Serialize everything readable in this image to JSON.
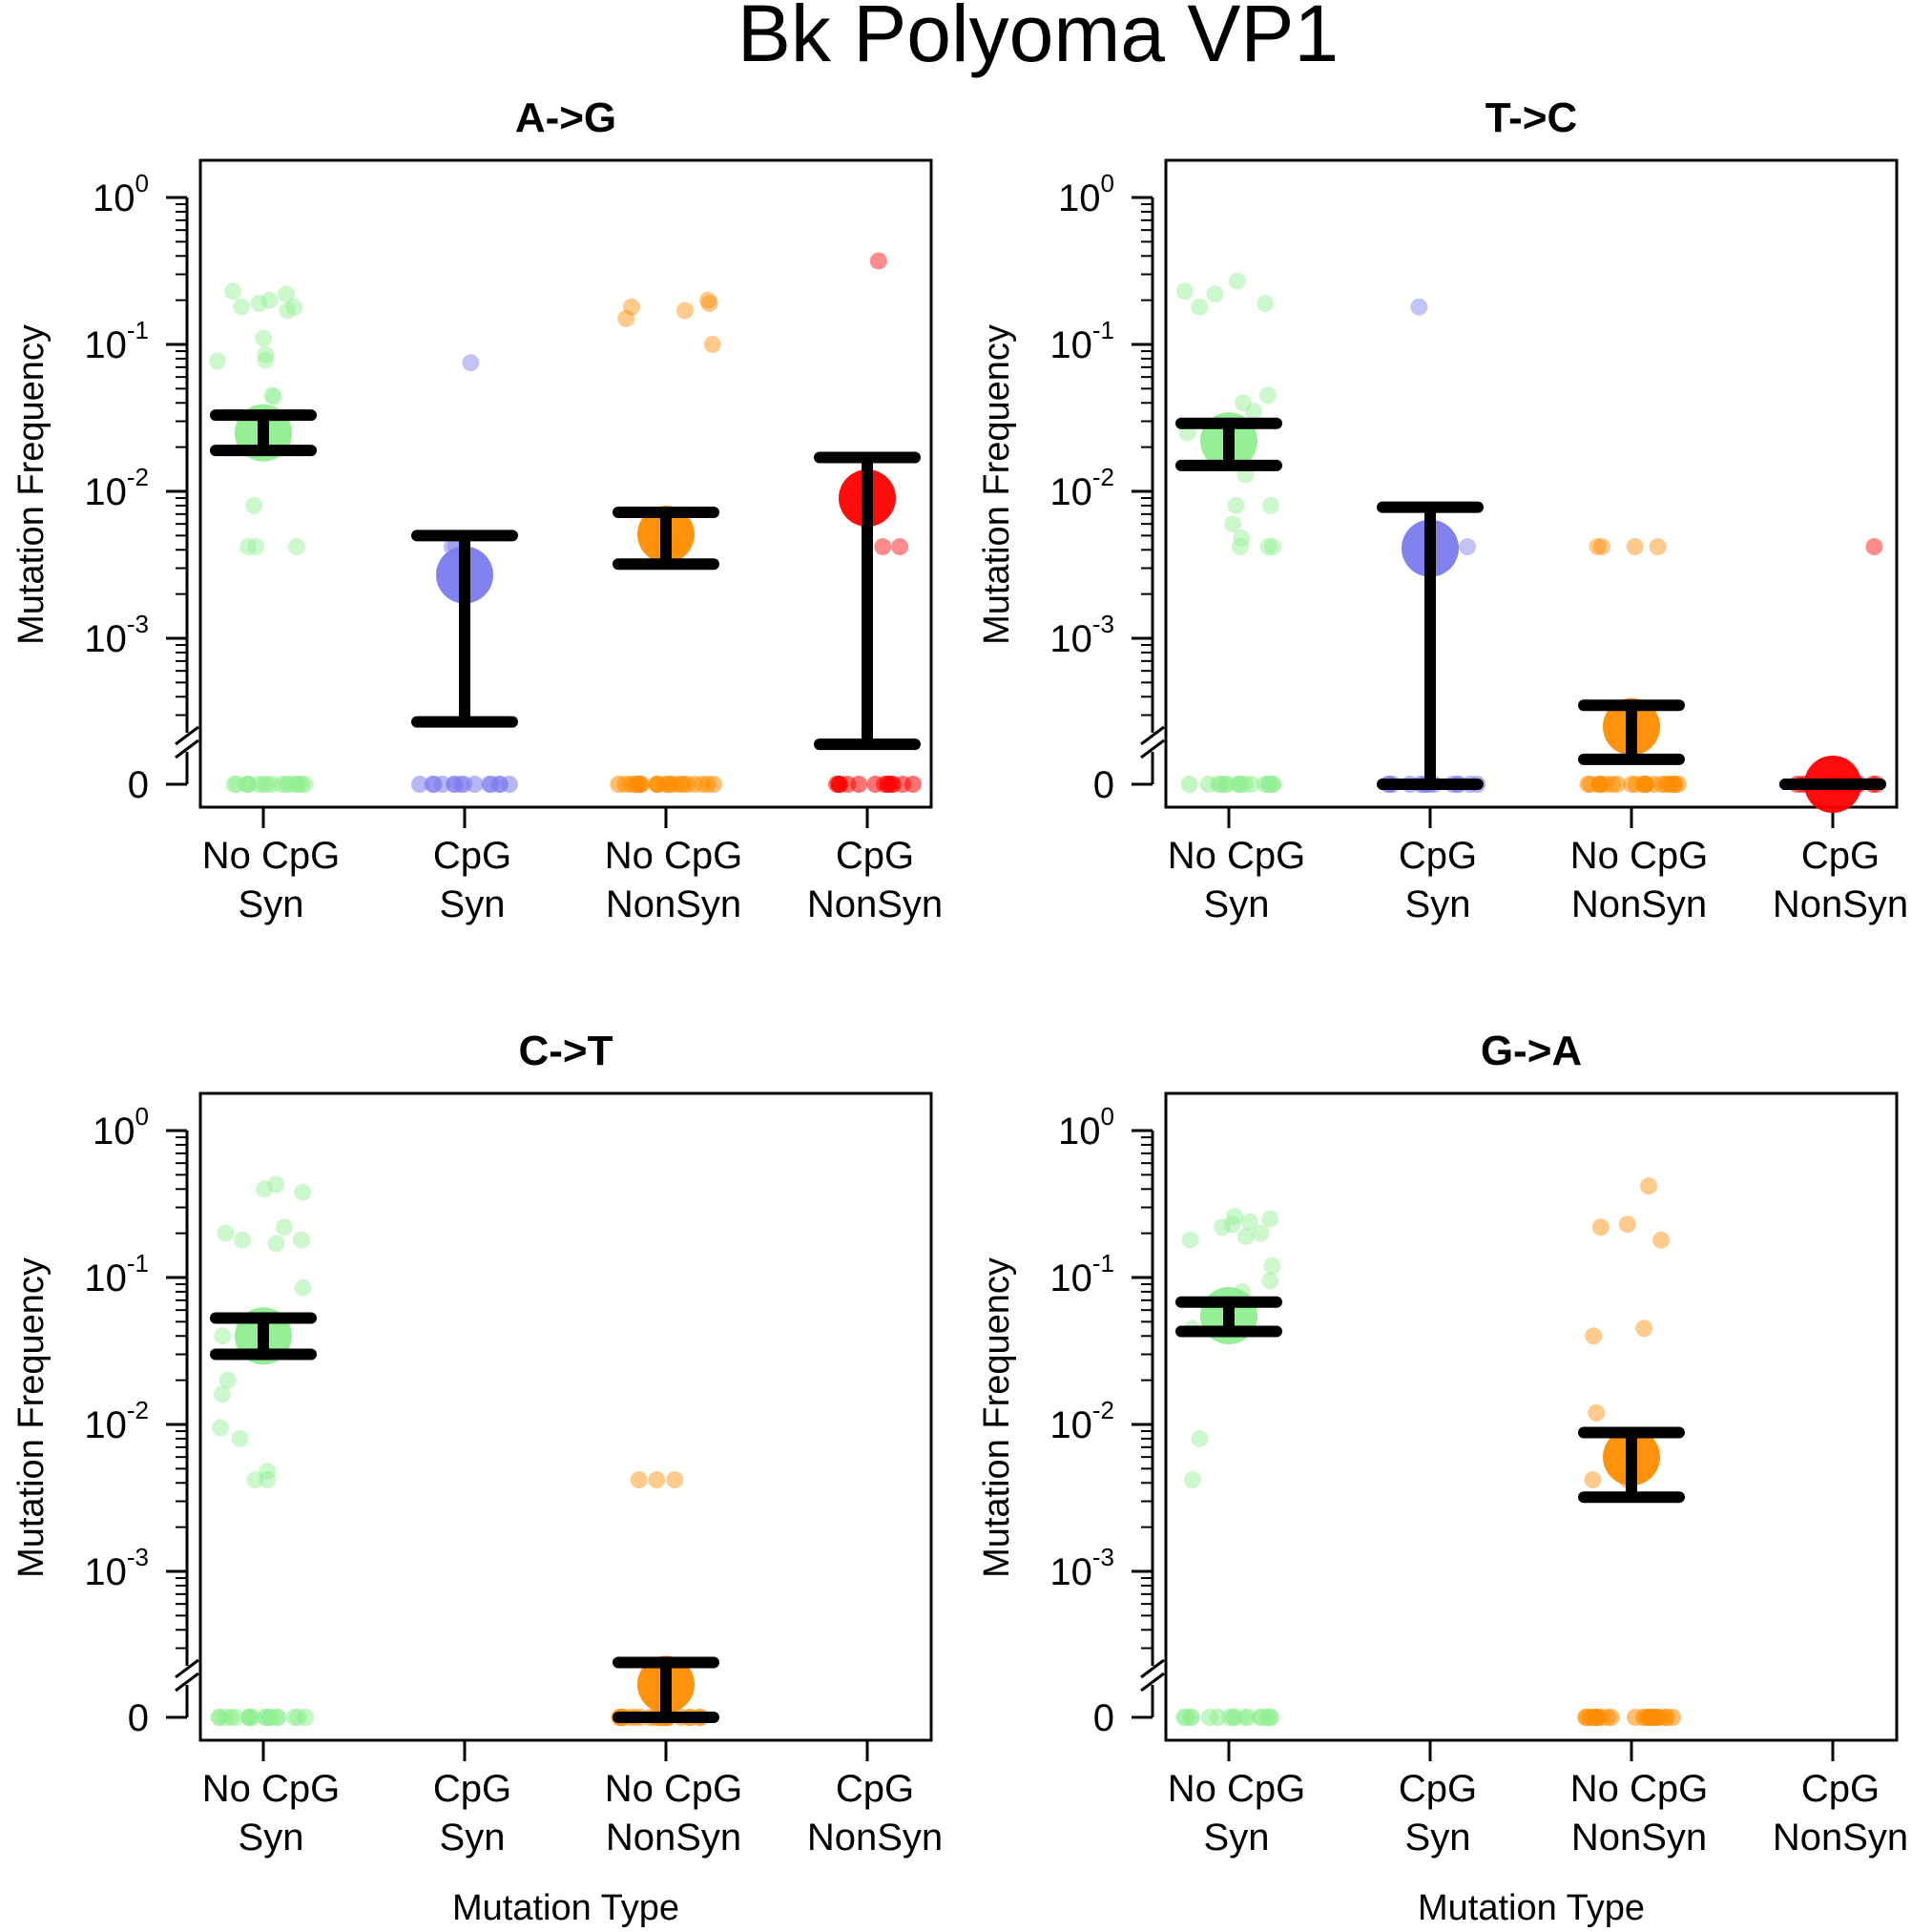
{
  "title": "Bk Polyoma VP1",
  "colors": {
    "nocpg_syn": "#90EE90",
    "cpg_syn": "#7B7BEE",
    "nocpg_nonsyn": "#FF8C00",
    "cpg_nonsyn": "#FF0000",
    "errorbar": "#000000"
  },
  "chart_data": [
    {
      "type": "scatter",
      "title": "A->G",
      "xlabel": "",
      "ylabel": "Mutation Frequency",
      "yscale": "log",
      "ylim": [
        0.0001,
        1
      ],
      "yticks": [
        "10^0",
        "10^-1",
        "10^-2",
        "10^-3",
        "0"
      ],
      "categories": [
        "No CpG\nSyn",
        "CpG\nSyn",
        "No CpG\nNonSyn",
        "CpG\nNonSyn"
      ],
      "series": [
        {
          "category": "No CpG\nSyn",
          "color": "nocpg_syn",
          "mean": 0.025,
          "ci": [
            0.019,
            0.033
          ],
          "points": [
            0.23,
            0.22,
            0.2,
            0.19,
            0.18,
            0.18,
            0.17,
            0.11,
            0.085,
            0.078,
            0.077,
            0.045,
            0.044,
            0.008,
            0.0042,
            0.0042,
            0.0042
          ],
          "zero_count": 16
        },
        {
          "category": "CpG\nSyn",
          "color": "cpg_syn",
          "mean": 0.0027,
          "ci": [
            0.00027,
            0.005
          ],
          "points": [
            0.075,
            0.0042,
            0.0042
          ],
          "zero_count": 14
        },
        {
          "category": "No CpG\nNonSyn",
          "color": "nocpg_nonsyn",
          "mean": 0.0051,
          "ci": [
            0.0032,
            0.0072
          ],
          "points": [
            0.2,
            0.19,
            0.18,
            0.17,
            0.15,
            0.1,
            0.0042,
            0.0042,
            0.0042
          ],
          "zero_count": 22
        },
        {
          "category": "CpG\nNonSyn",
          "color": "cpg_nonsyn",
          "mean": 0.009,
          "ci": [
            0.00019,
            0.017
          ],
          "points": [
            0.37,
            0.0042,
            0.0042
          ],
          "zero_count": 14
        }
      ]
    },
    {
      "type": "scatter",
      "title": "T->C",
      "xlabel": "",
      "ylabel": "Mutation Frequency",
      "yscale": "log",
      "ylim": [
        0.0001,
        1
      ],
      "yticks": [
        "10^0",
        "10^-1",
        "10^-2",
        "10^-3",
        "0"
      ],
      "categories": [
        "No CpG\nSyn",
        "CpG\nSyn",
        "No CpG\nNonSyn",
        "CpG\nNonSyn"
      ],
      "series": [
        {
          "category": "No CpG\nSyn",
          "color": "nocpg_syn",
          "mean": 0.022,
          "ci": [
            0.015,
            0.029
          ],
          "points": [
            0.27,
            0.23,
            0.22,
            0.19,
            0.18,
            0.045,
            0.04,
            0.035,
            0.025,
            0.013,
            0.008,
            0.008,
            0.006,
            0.0048,
            0.0042,
            0.0042,
            0.0042
          ],
          "zero_count": 16
        },
        {
          "category": "CpG\nSyn",
          "color": "cpg_syn",
          "mean": 0.0041,
          "ci": [
            0,
            0.0078
          ],
          "points": [
            0.18,
            0.0042
          ],
          "zero_count": 14
        },
        {
          "category": "No CpG\nNonSyn",
          "color": "nocpg_nonsyn",
          "mean": 0.00025,
          "ci": [
            0.00015,
            0.00035
          ],
          "points": [
            0.0042,
            0.0042,
            0.0042,
            0.0042
          ],
          "zero_count": 22
        },
        {
          "category": "CpG\nNonSyn",
          "color": "cpg_nonsyn",
          "mean": 0,
          "ci": [
            0,
            0
          ],
          "points": [
            0.0042
          ],
          "zero_count": 14
        }
      ]
    },
    {
      "type": "scatter",
      "title": "C->T",
      "xlabel": "Mutation Type",
      "ylabel": "Mutation Frequency",
      "yscale": "log",
      "ylim": [
        0.0001,
        1
      ],
      "yticks": [
        "10^0",
        "10^-1",
        "10^-2",
        "10^-3",
        "0"
      ],
      "categories": [
        "No CpG\nSyn",
        "CpG\nSyn",
        "No CpG\nNonSyn",
        "CpG\nNonSyn"
      ],
      "series": [
        {
          "category": "No CpG\nSyn",
          "color": "nocpg_syn",
          "mean": 0.04,
          "ci": [
            0.03,
            0.053
          ],
          "points": [
            0.43,
            0.4,
            0.38,
            0.22,
            0.2,
            0.18,
            0.18,
            0.17,
            0.085,
            0.04,
            0.02,
            0.016,
            0.0095,
            0.008,
            0.0048,
            0.0042,
            0.0042
          ],
          "zero_count": 18
        },
        {
          "category": "No CpG\nNonSyn",
          "color": "nocpg_nonsyn",
          "mean": 0.00017,
          "ci": [
            0,
            0.00024
          ],
          "points": [
            0.0042,
            0.0042,
            0.0042
          ],
          "zero_count": 22
        }
      ]
    },
    {
      "type": "scatter",
      "title": "G->A",
      "xlabel": "Mutation Type",
      "ylabel": "Mutation Frequency",
      "yscale": "log",
      "ylim": [
        0.0001,
        1
      ],
      "yticks": [
        "10^0",
        "10^-1",
        "10^-2",
        "10^-3",
        "0"
      ],
      "categories": [
        "No CpG\nSyn",
        "CpG\nSyn",
        "No CpG\nNonSyn",
        "CpG\nNonSyn"
      ],
      "series": [
        {
          "category": "No CpG\nSyn",
          "color": "nocpg_syn",
          "mean": 0.055,
          "ci": [
            0.043,
            0.068
          ],
          "points": [
            0.26,
            0.25,
            0.24,
            0.23,
            0.22,
            0.2,
            0.19,
            0.18,
            0.12,
            0.095,
            0.08,
            0.045,
            0.008,
            0.0042
          ],
          "zero_count": 16
        },
        {
          "category": "No CpG\nNonSyn",
          "color": "nocpg_nonsyn",
          "mean": 0.006,
          "ci": [
            0.0032,
            0.0088
          ],
          "points": [
            0.42,
            0.23,
            0.22,
            0.18,
            0.045,
            0.04,
            0.012,
            0.0042,
            0.0042
          ],
          "zero_count": 24
        }
      ]
    }
  ]
}
